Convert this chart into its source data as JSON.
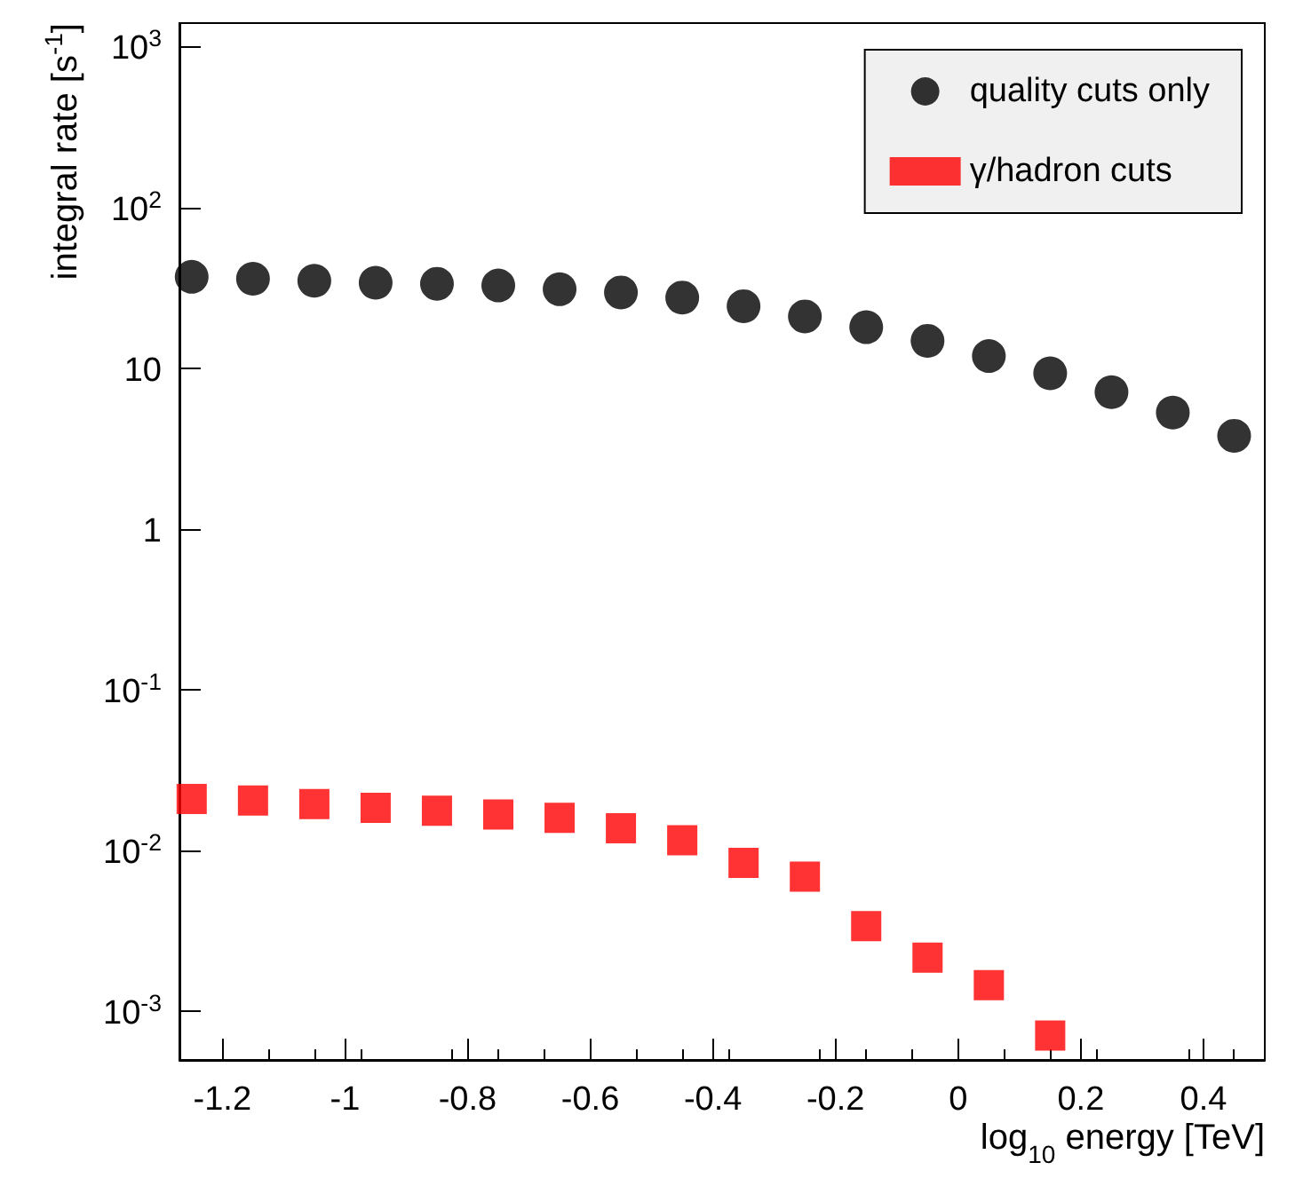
{
  "chart_data": {
    "type": "scatter",
    "xlabel": "log$_{10}$ energy [TeV]",
    "ylabel": "integral rate [s$^{-1}$]",
    "log": "y",
    "grid": false,
    "legend": "top right",
    "xlim": [
      -1.27,
      0.5
    ],
    "xticks": [
      -1.2,
      -1,
      -0.8,
      -0.6,
      -0.4,
      -0.2,
      0,
      0.2,
      0.4
    ],
    "ylim": [
      0.0005,
      1400
    ],
    "yticks": [
      {
        "value": 0.001,
        "label": "10$^{-3}$"
      },
      {
        "value": 0.01,
        "label": "10$^{-2}$"
      },
      {
        "value": 0.1,
        "label": "10$^{-1}$"
      },
      1,
      10,
      {
        "value": 100,
        "label": "10$^{2}$"
      },
      {
        "value": 1000,
        "label": "10$^{3}$"
      }
    ],
    "series": [
      {
        "name": "quality cuts only",
        "color": "#000000",
        "marker": "circle",
        "x": [
          -1.25,
          -1.15,
          -1.05,
          -0.95,
          -0.85,
          -0.75,
          -0.65,
          -0.55,
          -0.45,
          -0.35,
          -0.25,
          -0.15,
          -0.05,
          0.05,
          0.15,
          0.25,
          0.35,
          0.45
        ],
        "values": [
          37,
          36,
          35,
          34,
          33.5,
          32.7,
          31,
          29.6,
          27.5,
          24.3,
          21,
          18,
          14.8,
          11.9,
          9.3,
          7.1,
          5.3,
          3.8
        ]
      },
      {
        "name": "γ/hadron cuts",
        "color": "#ff0000",
        "marker": "square",
        "x": [
          -1.25,
          -1.15,
          -1.05,
          -0.95,
          -0.85,
          -0.75,
          -0.65,
          -0.55,
          -0.45,
          -0.35,
          -0.25,
          -0.15,
          -0.05,
          0.05,
          0.15
        ],
        "values": [
          0.021,
          0.0205,
          0.0195,
          0.0185,
          0.0177,
          0.0168,
          0.016,
          0.0138,
          0.0116,
          0.0084,
          0.0069,
          0.0034,
          0.00216,
          0.00146,
          0.00071
        ]
      }
    ]
  }
}
